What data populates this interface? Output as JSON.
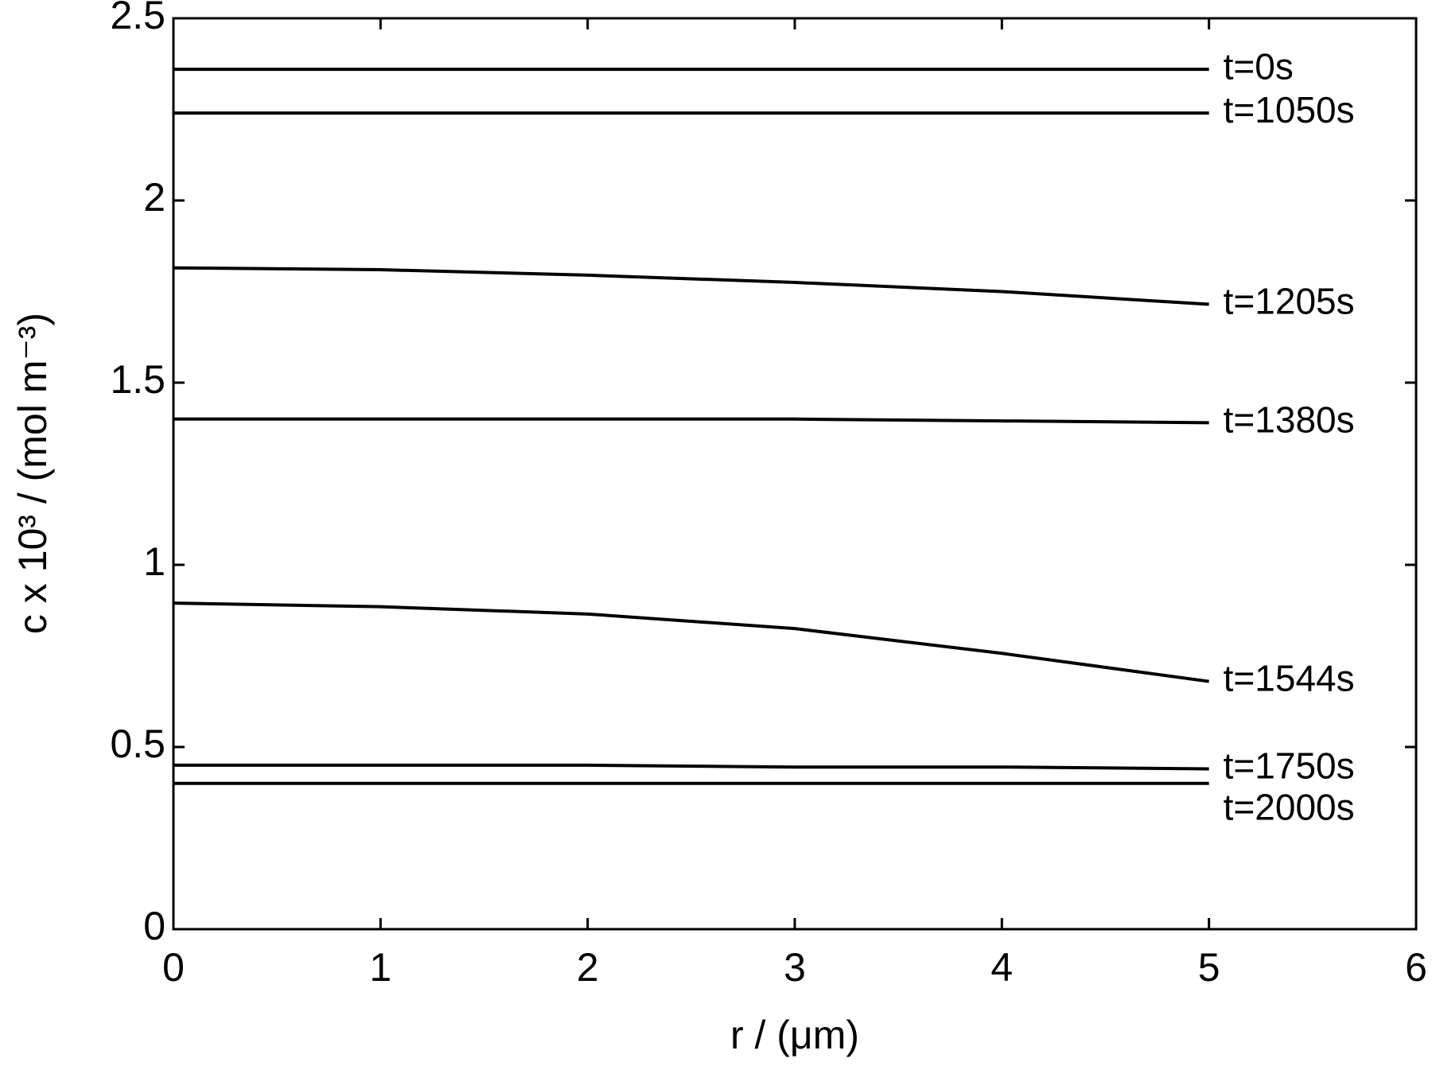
{
  "chart_data": {
    "type": "line",
    "x_label": "r / (μm)",
    "y_label": "c x 10³ / (mol m⁻³)",
    "x": [
      0,
      1,
      2,
      3,
      4,
      5
    ],
    "series": [
      {
        "name": "t=0s",
        "color": "#000000",
        "values": [
          2.36,
          2.36,
          2.36,
          2.36,
          2.36,
          2.36
        ]
      },
      {
        "name": "t=1050s",
        "color": "#000000",
        "values": [
          2.24,
          2.24,
          2.24,
          2.24,
          2.24,
          2.24
        ]
      },
      {
        "name": "t=1205s",
        "color": "#000000",
        "values": [
          1.815,
          1.81,
          1.795,
          1.775,
          1.75,
          1.715
        ]
      },
      {
        "name": "t=1380s",
        "color": "#000000",
        "values": [
          1.4,
          1.4,
          1.4,
          1.4,
          1.395,
          1.39
        ]
      },
      {
        "name": "t=1544s",
        "color": "#000000",
        "values": [
          0.895,
          0.885,
          0.865,
          0.825,
          0.757,
          0.68
        ]
      },
      {
        "name": "t=1750s",
        "color": "#000000",
        "values": [
          0.45,
          0.45,
          0.45,
          0.445,
          0.445,
          0.44
        ]
      },
      {
        "name": "t=2000s",
        "color": "#000000",
        "values": [
          0.4,
          0.4,
          0.4,
          0.4,
          0.4,
          0.4
        ]
      }
    ],
    "xlim": [
      0,
      6
    ],
    "xticks": [
      0,
      1,
      2,
      3,
      4,
      5,
      6
    ],
    "ylim": [
      0,
      2.5
    ],
    "yticks": [
      0,
      0.5,
      1,
      1.5,
      2,
      2.5
    ],
    "grid": false
  }
}
